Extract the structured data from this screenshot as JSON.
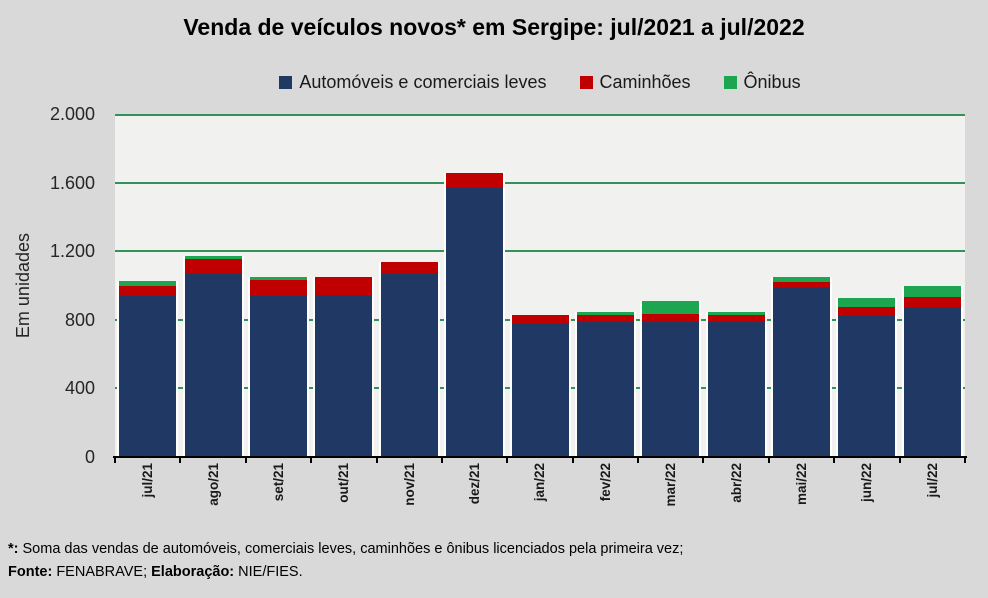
{
  "title": "Venda de veículos novos* em Sergipe: jul/2021 a jul/2022",
  "legend": [
    {
      "label": "Automóveis e comerciais leves",
      "color": "#1F3864"
    },
    {
      "label": "Caminhões",
      "color": "#C00000"
    },
    {
      "label": "Ônibus",
      "color": "#1CA650"
    }
  ],
  "colors": {
    "canvas_bg": "#D9D9D9",
    "plot_bg": "#F1F1EF",
    "gridline": "#339159",
    "axis": "#000000",
    "series_automoveis": "#1F3864",
    "series_caminhoes": "#C00000",
    "series_onibus": "#1CA650"
  },
  "chart_data": {
    "type": "bar",
    "stacked": true,
    "title": "Venda de veículos novos* em Sergipe: jul/2021 a jul/2022",
    "xlabel": "",
    "ylabel": "Em unidades",
    "ylim": [
      0,
      2000
    ],
    "yticks": [
      0,
      400,
      800,
      1200,
      1600,
      2000
    ],
    "ytick_labels": [
      "0",
      "400",
      "800",
      "1.200",
      "1.600",
      "2.000"
    ],
    "grid": true,
    "legend_position": "top",
    "categories": [
      "jul/21",
      "ago/21",
      "set/21",
      "out/21",
      "nov/21",
      "dez/21",
      "jan/22",
      "fev/22",
      "mar/22",
      "abr/22",
      "mai/22",
      "jun/22",
      "jul/22"
    ],
    "series": [
      {
        "name": "Automóveis e comerciais leves",
        "color": "#1F3864",
        "values": [
          940,
          1065,
          940,
          945,
          1065,
          1570,
          775,
          785,
          785,
          790,
          985,
          820,
          875
        ]
      },
      {
        "name": "Caminhões",
        "color": "#C00000",
        "values": [
          55,
          90,
          90,
          105,
          70,
          85,
          55,
          45,
          50,
          40,
          35,
          55,
          60
        ]
      },
      {
        "name": "Ônibus",
        "color": "#1CA650",
        "values": [
          30,
          20,
          20,
          0,
          0,
          0,
          0,
          15,
          75,
          15,
          30,
          55,
          60
        ]
      }
    ]
  },
  "footnotes": {
    "note_prefix": "*:",
    "note_text": " Soma das vendas de automóveis, comerciais leves, caminhões e ônibus licenciados pela primeira vez;",
    "source_label": "Fonte:",
    "source_value": " FENABRAVE; ",
    "elaboration_label": "Elaboração:",
    "elaboration_value": " NIE/FIES."
  }
}
